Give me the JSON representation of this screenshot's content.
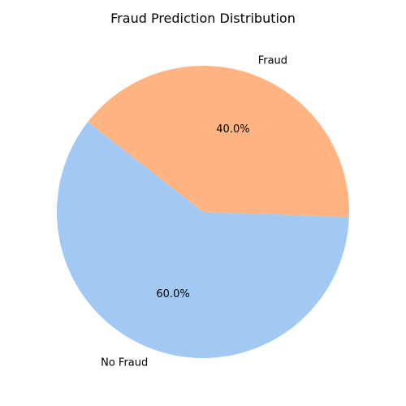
{
  "chart_data": {
    "type": "pie",
    "title": "Fraud Prediction Distribution",
    "startangle_deg": 142,
    "counterclockwise": true,
    "slices": [
      {
        "label": "No Fraud",
        "value": 60.0,
        "pct_label": "60.0%",
        "color": "#a1c9f4"
      },
      {
        "label": "Fraud",
        "value": 40.0,
        "pct_label": "40.0%",
        "color": "#ffb482"
      }
    ]
  }
}
